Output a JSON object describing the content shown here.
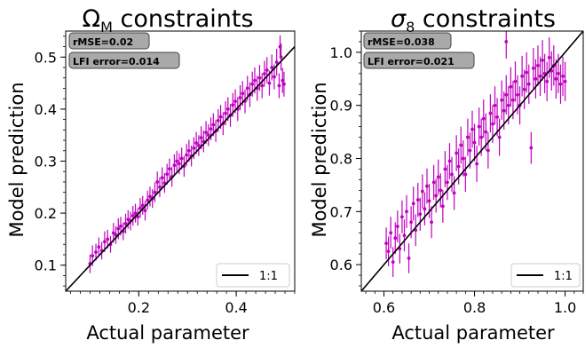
{
  "chart_data": [
    {
      "type": "scatter",
      "title": "Ω_M constraints",
      "title_parts": {
        "main": "Ω",
        "sub": "M",
        "rest": " constraints"
      },
      "xlabel": "Actual parameter",
      "ylabel": "Model prediction",
      "xlim": [
        0.05,
        0.52
      ],
      "ylim": [
        0.05,
        0.55
      ],
      "x_ticks": [
        0.2,
        0.4
      ],
      "x_tick_labels": [
        "0.2",
        "0.4"
      ],
      "y_ticks": [
        0.1,
        0.2,
        0.3,
        0.4,
        0.5
      ],
      "y_tick_labels": [
        "0.1",
        "0.2",
        "0.3",
        "0.4",
        "0.5"
      ],
      "grid": false,
      "stats": [
        {
          "label": "rMSE=0.02"
        },
        {
          "label": "LFI error=0.014"
        }
      ],
      "legend": {
        "placement": "bottom-right",
        "entries": [
          "1:1"
        ]
      },
      "reference_line": {
        "label": "1:1",
        "color": "#000000"
      },
      "marker_color": "#c000c0",
      "points": [
        {
          "x": 0.1,
          "y": 0.103,
          "e": 0.018
        },
        {
          "x": 0.105,
          "y": 0.118,
          "e": 0.02
        },
        {
          "x": 0.112,
          "y": 0.125,
          "e": 0.016
        },
        {
          "x": 0.118,
          "y": 0.135,
          "e": 0.018
        },
        {
          "x": 0.124,
          "y": 0.128,
          "e": 0.017
        },
        {
          "x": 0.13,
          "y": 0.145,
          "e": 0.02
        },
        {
          "x": 0.136,
          "y": 0.15,
          "e": 0.018
        },
        {
          "x": 0.142,
          "y": 0.14,
          "e": 0.016
        },
        {
          "x": 0.148,
          "y": 0.162,
          "e": 0.019
        },
        {
          "x": 0.153,
          "y": 0.158,
          "e": 0.017
        },
        {
          "x": 0.158,
          "y": 0.17,
          "e": 0.02
        },
        {
          "x": 0.163,
          "y": 0.175,
          "e": 0.018
        },
        {
          "x": 0.168,
          "y": 0.165,
          "e": 0.017
        },
        {
          "x": 0.173,
          "y": 0.18,
          "e": 0.019
        },
        {
          "x": 0.178,
          "y": 0.188,
          "e": 0.018
        },
        {
          "x": 0.183,
          "y": 0.185,
          "e": 0.018
        },
        {
          "x": 0.188,
          "y": 0.195,
          "e": 0.019
        },
        {
          "x": 0.193,
          "y": 0.2,
          "e": 0.018
        },
        {
          "x": 0.198,
          "y": 0.193,
          "e": 0.017
        },
        {
          "x": 0.203,
          "y": 0.21,
          "e": 0.019
        },
        {
          "x": 0.208,
          "y": 0.215,
          "e": 0.018
        },
        {
          "x": 0.213,
          "y": 0.205,
          "e": 0.019
        },
        {
          "x": 0.218,
          "y": 0.225,
          "e": 0.018
        },
        {
          "x": 0.223,
          "y": 0.232,
          "e": 0.019
        },
        {
          "x": 0.228,
          "y": 0.228,
          "e": 0.018
        },
        {
          "x": 0.233,
          "y": 0.24,
          "e": 0.019
        },
        {
          "x": 0.238,
          "y": 0.26,
          "e": 0.02
        },
        {
          "x": 0.243,
          "y": 0.25,
          "e": 0.019
        },
        {
          "x": 0.248,
          "y": 0.268,
          "e": 0.02
        },
        {
          "x": 0.253,
          "y": 0.258,
          "e": 0.019
        },
        {
          "x": 0.258,
          "y": 0.275,
          "e": 0.02
        },
        {
          "x": 0.263,
          "y": 0.285,
          "e": 0.02
        },
        {
          "x": 0.268,
          "y": 0.27,
          "e": 0.019
        },
        {
          "x": 0.273,
          "y": 0.292,
          "e": 0.021
        },
        {
          "x": 0.278,
          "y": 0.3,
          "e": 0.02
        },
        {
          "x": 0.283,
          "y": 0.295,
          "e": 0.02
        },
        {
          "x": 0.288,
          "y": 0.305,
          "e": 0.021
        },
        {
          "x": 0.293,
          "y": 0.29,
          "e": 0.02
        },
        {
          "x": 0.298,
          "y": 0.312,
          "e": 0.021
        },
        {
          "x": 0.303,
          "y": 0.32,
          "e": 0.021
        },
        {
          "x": 0.308,
          "y": 0.31,
          "e": 0.02
        },
        {
          "x": 0.313,
          "y": 0.325,
          "e": 0.021
        },
        {
          "x": 0.318,
          "y": 0.335,
          "e": 0.021
        },
        {
          "x": 0.323,
          "y": 0.33,
          "e": 0.02
        },
        {
          "x": 0.328,
          "y": 0.345,
          "e": 0.022
        },
        {
          "x": 0.333,
          "y": 0.338,
          "e": 0.021
        },
        {
          "x": 0.338,
          "y": 0.355,
          "e": 0.022
        },
        {
          "x": 0.343,
          "y": 0.35,
          "e": 0.021
        },
        {
          "x": 0.348,
          "y": 0.362,
          "e": 0.022
        },
        {
          "x": 0.353,
          "y": 0.37,
          "e": 0.022
        },
        {
          "x": 0.358,
          "y": 0.358,
          "e": 0.021
        },
        {
          "x": 0.363,
          "y": 0.378,
          "e": 0.022
        },
        {
          "x": 0.368,
          "y": 0.385,
          "e": 0.023
        },
        {
          "x": 0.373,
          "y": 0.372,
          "e": 0.022
        },
        {
          "x": 0.378,
          "y": 0.392,
          "e": 0.023
        },
        {
          "x": 0.383,
          "y": 0.4,
          "e": 0.023
        },
        {
          "x": 0.388,
          "y": 0.388,
          "e": 0.022
        },
        {
          "x": 0.393,
          "y": 0.408,
          "e": 0.023
        },
        {
          "x": 0.398,
          "y": 0.415,
          "e": 0.023
        },
        {
          "x": 0.403,
          "y": 0.4,
          "e": 0.023
        },
        {
          "x": 0.408,
          "y": 0.422,
          "e": 0.024
        },
        {
          "x": 0.413,
          "y": 0.43,
          "e": 0.024
        },
        {
          "x": 0.418,
          "y": 0.415,
          "e": 0.023
        },
        {
          "x": 0.423,
          "y": 0.44,
          "e": 0.024
        },
        {
          "x": 0.428,
          "y": 0.428,
          "e": 0.024
        },
        {
          "x": 0.433,
          "y": 0.448,
          "e": 0.024
        },
        {
          "x": 0.438,
          "y": 0.455,
          "e": 0.025
        },
        {
          "x": 0.443,
          "y": 0.44,
          "e": 0.024
        },
        {
          "x": 0.448,
          "y": 0.46,
          "e": 0.025
        },
        {
          "x": 0.453,
          "y": 0.445,
          "e": 0.024
        },
        {
          "x": 0.458,
          "y": 0.468,
          "e": 0.025
        },
        {
          "x": 0.463,
          "y": 0.475,
          "e": 0.025
        },
        {
          "x": 0.468,
          "y": 0.45,
          "e": 0.024
        },
        {
          "x": 0.473,
          "y": 0.48,
          "e": 0.025
        },
        {
          "x": 0.478,
          "y": 0.462,
          "e": 0.024
        },
        {
          "x": 0.483,
          "y": 0.49,
          "e": 0.026
        },
        {
          "x": 0.488,
          "y": 0.445,
          "e": 0.024
        },
        {
          "x": 0.492,
          "y": 0.5,
          "e": 0.026
        },
        {
          "x": 0.495,
          "y": 0.455,
          "e": 0.024
        },
        {
          "x": 0.498,
          "y": 0.448,
          "e": 0.024
        },
        {
          "x": 0.49,
          "y": 0.52,
          "e": 0.022
        }
      ]
    },
    {
      "type": "scatter",
      "title": "σ_8 constraints",
      "title_parts": {
        "main": "σ",
        "sub": "8",
        "rest": " constraints"
      },
      "xlabel": "Actual parameter",
      "ylabel": "Model prediction",
      "xlim": [
        0.55,
        1.04
      ],
      "ylim": [
        0.55,
        1.04
      ],
      "x_ticks": [
        0.6,
        0.8,
        1.0
      ],
      "x_tick_labels": [
        "0.6",
        "0.8",
        "1.0"
      ],
      "y_ticks": [
        0.6,
        0.7,
        0.8,
        0.9,
        1.0
      ],
      "y_tick_labels": [
        "0.6",
        "0.7",
        "0.8",
        "0.9",
        "1.0"
      ],
      "grid": false,
      "stats": [
        {
          "label": "rMSE=0.038"
        },
        {
          "label": "LFI error=0.021"
        }
      ],
      "legend": {
        "placement": "bottom-right",
        "entries": [
          "1:1"
        ]
      },
      "reference_line": {
        "label": "1:1",
        "color": "#000000"
      },
      "marker_color": "#c000c0",
      "points": [
        {
          "x": 0.605,
          "y": 0.64,
          "e": 0.03
        },
        {
          "x": 0.61,
          "y": 0.625,
          "e": 0.028
        },
        {
          "x": 0.615,
          "y": 0.66,
          "e": 0.03
        },
        {
          "x": 0.62,
          "y": 0.605,
          "e": 0.028
        },
        {
          "x": 0.625,
          "y": 0.65,
          "e": 0.03
        },
        {
          "x": 0.63,
          "y": 0.672,
          "e": 0.03
        },
        {
          "x": 0.635,
          "y": 0.63,
          "e": 0.028
        },
        {
          "x": 0.64,
          "y": 0.69,
          "e": 0.031
        },
        {
          "x": 0.645,
          "y": 0.655,
          "e": 0.03
        },
        {
          "x": 0.65,
          "y": 0.7,
          "e": 0.031
        },
        {
          "x": 0.655,
          "y": 0.612,
          "e": 0.028
        },
        {
          "x": 0.66,
          "y": 0.68,
          "e": 0.03
        },
        {
          "x": 0.665,
          "y": 0.715,
          "e": 0.032
        },
        {
          "x": 0.67,
          "y": 0.665,
          "e": 0.03
        },
        {
          "x": 0.675,
          "y": 0.722,
          "e": 0.032
        },
        {
          "x": 0.68,
          "y": 0.695,
          "e": 0.031
        },
        {
          "x": 0.685,
          "y": 0.738,
          "e": 0.032
        },
        {
          "x": 0.69,
          "y": 0.705,
          "e": 0.031
        },
        {
          "x": 0.695,
          "y": 0.748,
          "e": 0.033
        },
        {
          "x": 0.7,
          "y": 0.72,
          "e": 0.032
        },
        {
          "x": 0.705,
          "y": 0.68,
          "e": 0.03
        },
        {
          "x": 0.71,
          "y": 0.755,
          "e": 0.033
        },
        {
          "x": 0.715,
          "y": 0.73,
          "e": 0.032
        },
        {
          "x": 0.72,
          "y": 0.765,
          "e": 0.033
        },
        {
          "x": 0.725,
          "y": 0.74,
          "e": 0.032
        },
        {
          "x": 0.73,
          "y": 0.71,
          "e": 0.031
        },
        {
          "x": 0.735,
          "y": 0.78,
          "e": 0.034
        },
        {
          "x": 0.74,
          "y": 0.755,
          "e": 0.033
        },
        {
          "x": 0.745,
          "y": 0.795,
          "e": 0.034
        },
        {
          "x": 0.75,
          "y": 0.77,
          "e": 0.033
        },
        {
          "x": 0.755,
          "y": 0.735,
          "e": 0.032
        },
        {
          "x": 0.76,
          "y": 0.81,
          "e": 0.034
        },
        {
          "x": 0.765,
          "y": 0.785,
          "e": 0.034
        },
        {
          "x": 0.77,
          "y": 0.825,
          "e": 0.035
        },
        {
          "x": 0.775,
          "y": 0.8,
          "e": 0.034
        },
        {
          "x": 0.78,
          "y": 0.77,
          "e": 0.033
        },
        {
          "x": 0.785,
          "y": 0.84,
          "e": 0.035
        },
        {
          "x": 0.79,
          "y": 0.815,
          "e": 0.034
        },
        {
          "x": 0.795,
          "y": 0.855,
          "e": 0.035
        },
        {
          "x": 0.8,
          "y": 0.83,
          "e": 0.035
        },
        {
          "x": 0.805,
          "y": 0.79,
          "e": 0.034
        },
        {
          "x": 0.81,
          "y": 0.86,
          "e": 0.036
        },
        {
          "x": 0.815,
          "y": 0.84,
          "e": 0.035
        },
        {
          "x": 0.82,
          "y": 0.875,
          "e": 0.036
        },
        {
          "x": 0.825,
          "y": 0.85,
          "e": 0.035
        },
        {
          "x": 0.83,
          "y": 0.815,
          "e": 0.034
        },
        {
          "x": 0.835,
          "y": 0.885,
          "e": 0.036
        },
        {
          "x": 0.84,
          "y": 0.865,
          "e": 0.036
        },
        {
          "x": 0.845,
          "y": 0.9,
          "e": 0.036
        },
        {
          "x": 0.85,
          "y": 0.878,
          "e": 0.036
        },
        {
          "x": 0.855,
          "y": 0.84,
          "e": 0.035
        },
        {
          "x": 0.86,
          "y": 0.91,
          "e": 0.037
        },
        {
          "x": 0.865,
          "y": 0.89,
          "e": 0.036
        },
        {
          "x": 0.87,
          "y": 0.92,
          "e": 0.037
        },
        {
          "x": 0.875,
          "y": 0.9,
          "e": 0.036
        },
        {
          "x": 0.88,
          "y": 0.935,
          "e": 0.037
        },
        {
          "x": 0.885,
          "y": 0.91,
          "e": 0.036
        },
        {
          "x": 0.89,
          "y": 0.945,
          "e": 0.038
        },
        {
          "x": 0.895,
          "y": 0.92,
          "e": 0.037
        },
        {
          "x": 0.9,
          "y": 0.9,
          "e": 0.036
        },
        {
          "x": 0.905,
          "y": 0.955,
          "e": 0.038
        },
        {
          "x": 0.91,
          "y": 0.93,
          "e": 0.037
        },
        {
          "x": 0.915,
          "y": 0.962,
          "e": 0.038
        },
        {
          "x": 0.92,
          "y": 0.94,
          "e": 0.037
        },
        {
          "x": 0.925,
          "y": 0.82,
          "e": 0.03
        },
        {
          "x": 0.93,
          "y": 0.97,
          "e": 0.038
        },
        {
          "x": 0.935,
          "y": 0.95,
          "e": 0.037
        },
        {
          "x": 0.94,
          "y": 0.975,
          "e": 0.038
        },
        {
          "x": 0.945,
          "y": 0.955,
          "e": 0.037
        },
        {
          "x": 0.95,
          "y": 0.985,
          "e": 0.038
        },
        {
          "x": 0.955,
          "y": 0.96,
          "e": 0.037
        },
        {
          "x": 0.96,
          "y": 0.945,
          "e": 0.037
        },
        {
          "x": 0.965,
          "y": 0.99,
          "e": 0.038
        },
        {
          "x": 0.97,
          "y": 0.965,
          "e": 0.037
        },
        {
          "x": 0.975,
          "y": 0.975,
          "e": 0.038
        },
        {
          "x": 0.98,
          "y": 0.95,
          "e": 0.037
        },
        {
          "x": 0.985,
          "y": 0.96,
          "e": 0.037
        },
        {
          "x": 0.99,
          "y": 0.94,
          "e": 0.037
        },
        {
          "x": 0.995,
          "y": 0.955,
          "e": 0.037
        },
        {
          "x": 1.0,
          "y": 0.945,
          "e": 0.037
        },
        {
          "x": 0.87,
          "y": 1.02,
          "e": 0.032
        }
      ]
    }
  ]
}
